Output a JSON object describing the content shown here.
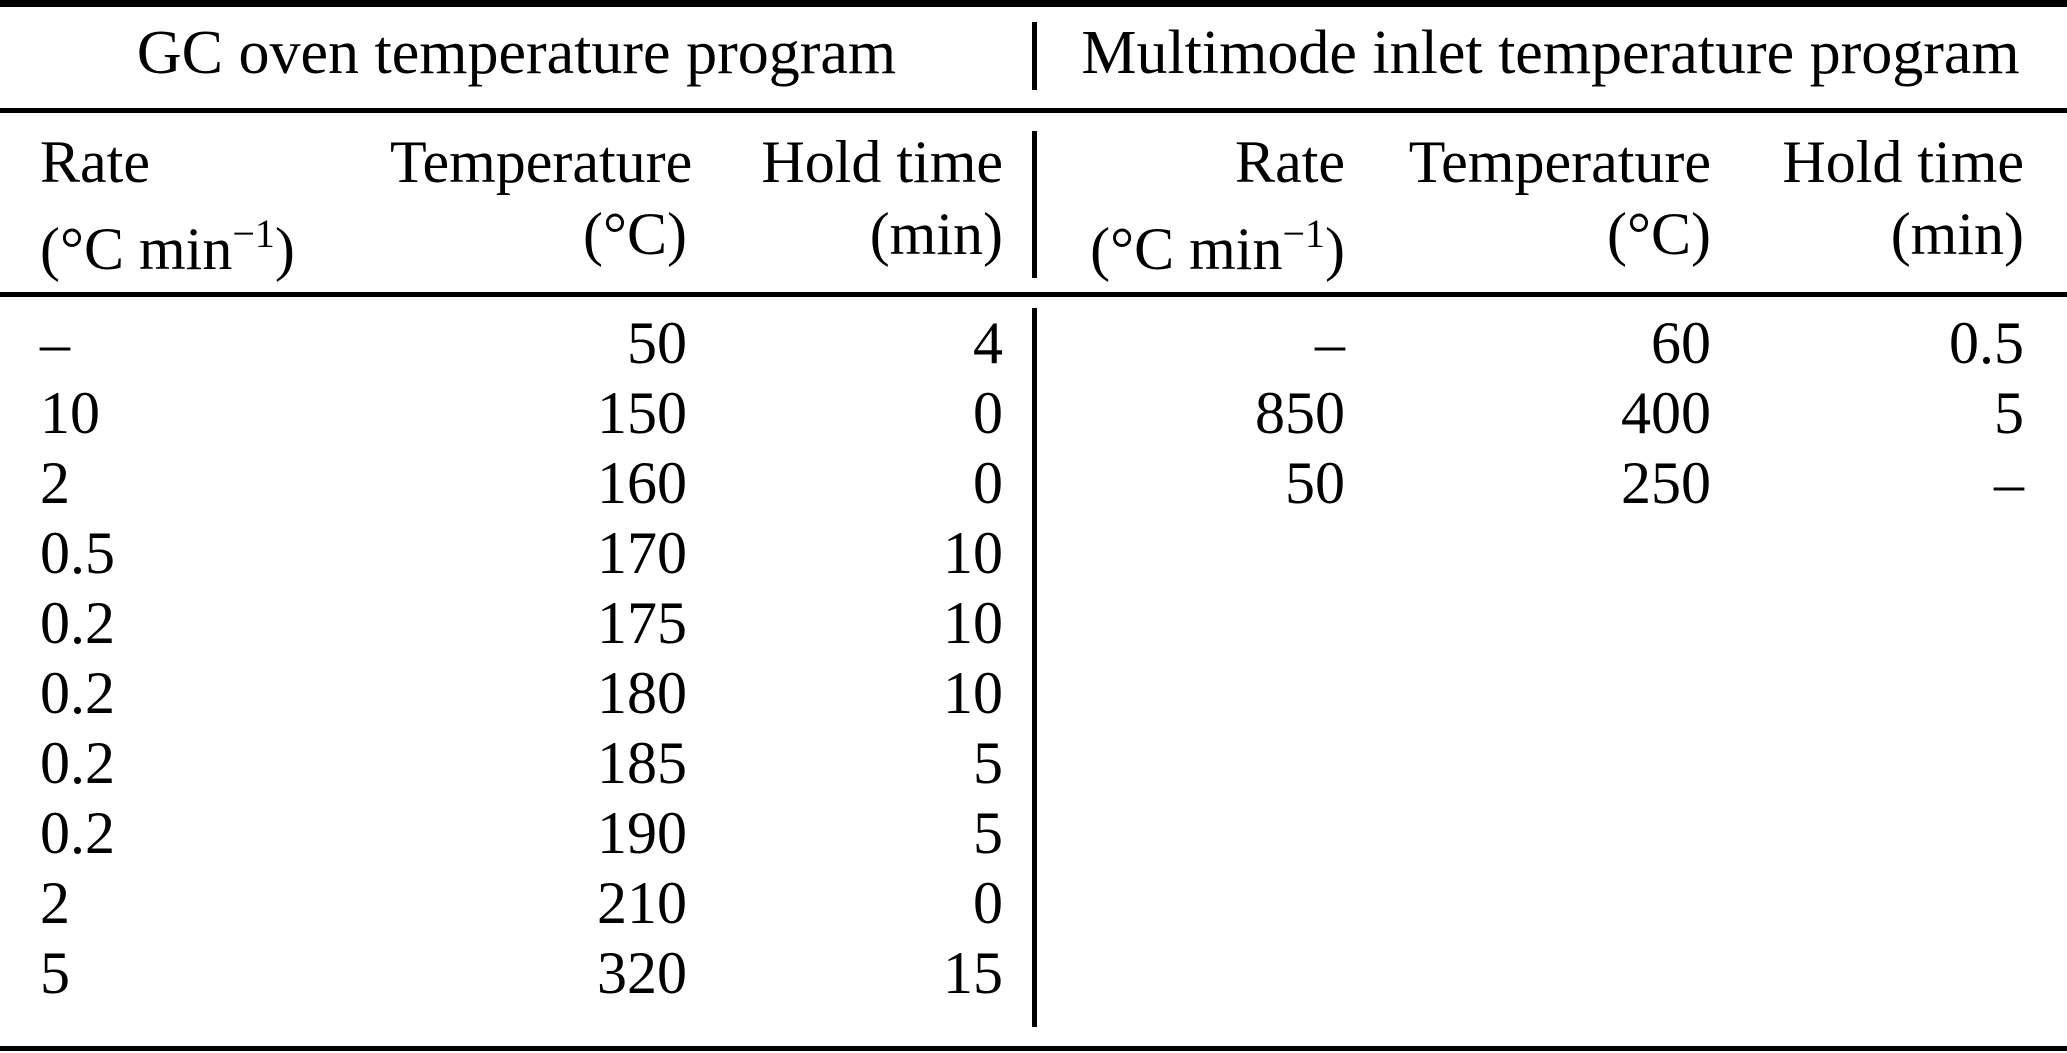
{
  "table": {
    "left": {
      "title": "GC oven temperature program",
      "columns": {
        "rate_label": "Rate",
        "rate_unit_prefix": "(°C min",
        "rate_unit_sup": "−1",
        "rate_unit_suffix": ")",
        "temperature_label": "Temperature",
        "temperature_unit": "(°C)",
        "hold_label": "Hold time",
        "hold_unit": "(min)"
      },
      "rows": [
        {
          "rate": "–",
          "temperature": "50",
          "hold_time": "4"
        },
        {
          "rate": "10",
          "temperature": "150",
          "hold_time": "0"
        },
        {
          "rate": "2",
          "temperature": "160",
          "hold_time": "0"
        },
        {
          "rate": "0.5",
          "temperature": "170",
          "hold_time": "10"
        },
        {
          "rate": "0.2",
          "temperature": "175",
          "hold_time": "10"
        },
        {
          "rate": "0.2",
          "temperature": "180",
          "hold_time": "10"
        },
        {
          "rate": "0.2",
          "temperature": "185",
          "hold_time": "5"
        },
        {
          "rate": "0.2",
          "temperature": "190",
          "hold_time": "5"
        },
        {
          "rate": "2",
          "temperature": "210",
          "hold_time": "0"
        },
        {
          "rate": "5",
          "temperature": "320",
          "hold_time": "15"
        }
      ]
    },
    "right": {
      "title": "Multimode inlet temperature program",
      "columns": {
        "rate_label": "Rate",
        "rate_unit_prefix": "(°C min",
        "rate_unit_sup": "−1",
        "rate_unit_suffix": ")",
        "temperature_label": "Temperature",
        "temperature_unit": "(°C)",
        "hold_label": "Hold time",
        "hold_unit": "(min)"
      },
      "rows": [
        {
          "rate": "–",
          "temperature": "60",
          "hold_time": "0.5"
        },
        {
          "rate": "850",
          "temperature": "400",
          "hold_time": "5"
        },
        {
          "rate": "50",
          "temperature": "250",
          "hold_time": "–"
        }
      ]
    },
    "colors": {
      "rule": "#000000",
      "text": "#000000",
      "background": "#ffffff"
    }
  }
}
